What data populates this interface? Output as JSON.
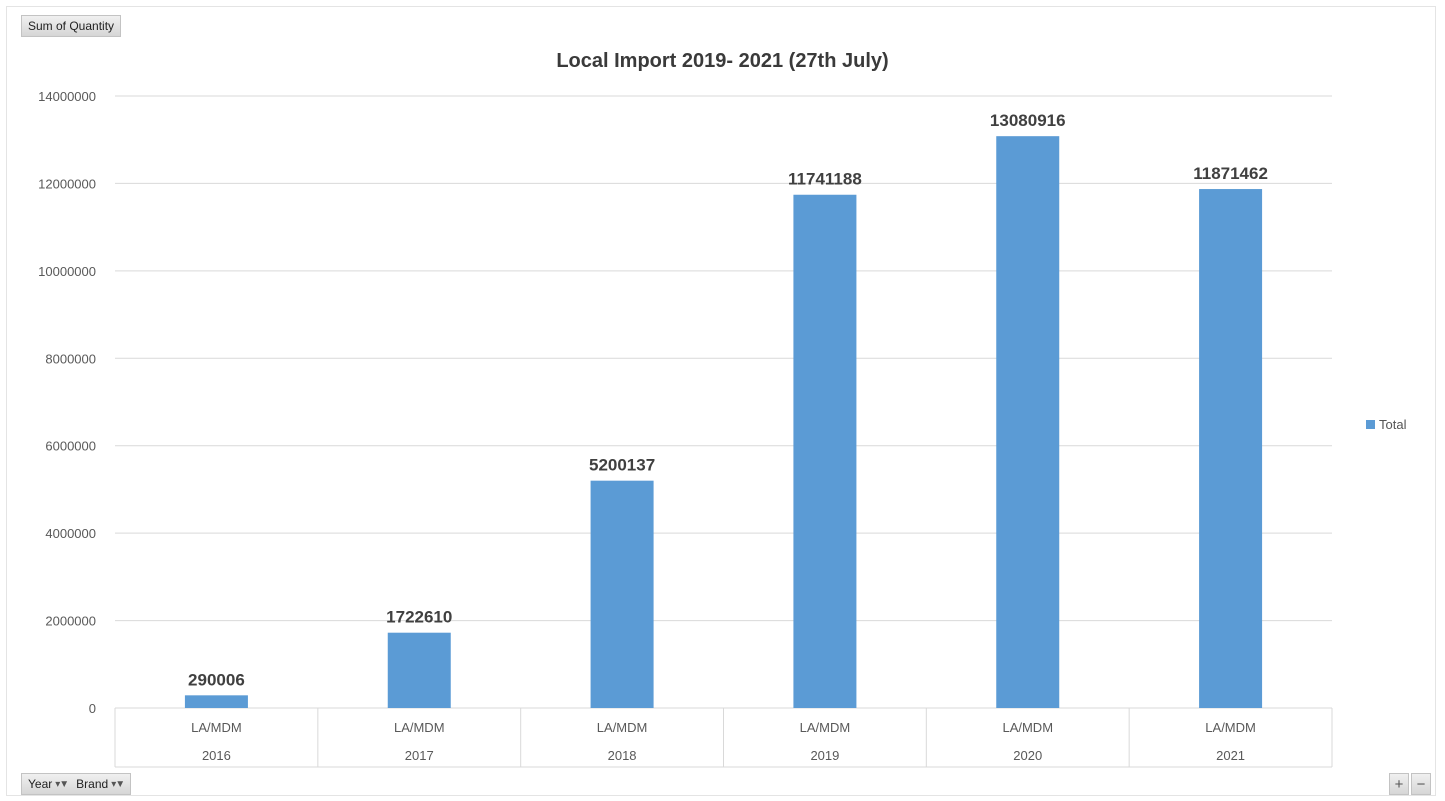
{
  "field_buttons": {
    "values_label": "Sum of Quantity",
    "axis_fields": [
      {
        "label": "Year",
        "icon": "filter-icon"
      },
      {
        "label": "Brand",
        "icon": "filter-icon"
      }
    ]
  },
  "zoom": {
    "plus": "+",
    "minus": "−"
  },
  "colors": {
    "bar": "#5b9bd5",
    "grid": "#d9d9d9",
    "axis_text": "#595959"
  },
  "chart_data": {
    "type": "bar",
    "title": "Local Import 2019- 2021 (27th July)",
    "categories": [
      {
        "brand": "LA/MDM",
        "year": "2016"
      },
      {
        "brand": "LA/MDM",
        "year": "2017"
      },
      {
        "brand": "LA/MDM",
        "year": "2018"
      },
      {
        "brand": "LA/MDM",
        "year": "2019"
      },
      {
        "brand": "LA/MDM",
        "year": "2020"
      },
      {
        "brand": "LA/MDM",
        "year": "2021"
      }
    ],
    "series": [
      {
        "name": "Total",
        "values": [
          290006,
          1722610,
          5200137,
          11741188,
          13080916,
          11871462
        ]
      }
    ],
    "ylim": [
      0,
      14000000
    ],
    "yticks": [
      0,
      2000000,
      4000000,
      6000000,
      8000000,
      10000000,
      12000000,
      14000000
    ],
    "data_labels": true,
    "grid": true,
    "legend": "right"
  }
}
